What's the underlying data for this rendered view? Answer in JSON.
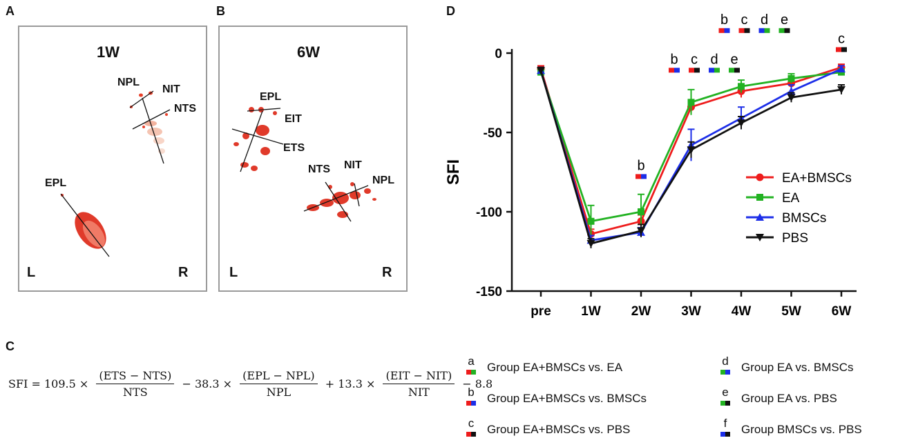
{
  "panels": {
    "A": {
      "letter": "A",
      "title": "1W",
      "labels": {
        "npl": "NPL",
        "nit": "NIT",
        "nts": "NTS",
        "epl": "EPL"
      },
      "left": "L",
      "right": "R"
    },
    "B": {
      "letter": "B",
      "title": "6W",
      "labels": {
        "epl": "EPL",
        "eit": "EIT",
        "ets": "ETS",
        "nts": "NTS",
        "nit": "NIT",
        "npl": "NPL"
      },
      "left": "L",
      "right": "R"
    },
    "C": {
      "letter": "C",
      "formula": {
        "lhs": "SFI = 109.5 × ",
        "f1_num": "(ETS − NTS)",
        "f1_den": "NTS",
        "op2": " − 38.3 × ",
        "f2_num": "(EPL − NPL)",
        "f2_den": "NPL",
        "op3": " + 13.3 × ",
        "f3_num": "(EIT − NIT)",
        "f3_den": "NIT",
        "tail": " − 8.8"
      }
    },
    "D": {
      "letter": "D"
    }
  },
  "colors": {
    "red": "#ee1c1c",
    "green": "#22b222",
    "blue": "#1c2ee8",
    "black": "#111111"
  },
  "chart_data": {
    "type": "line",
    "ylabel": "SFI",
    "xlabel": "",
    "categories": [
      "pre",
      "1W",
      "2W",
      "3W",
      "4W",
      "5W",
      "6W"
    ],
    "ylim": [
      -150,
      0
    ],
    "yticks": [
      0,
      -50,
      -100,
      -150
    ],
    "series": [
      {
        "name": "EA+BMSCs",
        "color": "#ee1c1c",
        "marker": "circle",
        "values": [
          -10,
          -114,
          -106,
          -34,
          -24,
          -19,
          -9
        ],
        "errors": [
          2,
          3,
          4,
          4,
          4,
          3,
          2
        ]
      },
      {
        "name": "EA",
        "color": "#22b222",
        "marker": "square",
        "values": [
          -12,
          -106,
          -100,
          -31,
          -21,
          -16,
          -12
        ],
        "errors": [
          2,
          10,
          11,
          8,
          4,
          3,
          2
        ]
      },
      {
        "name": "BMSCs",
        "color": "#1c2ee8",
        "marker": "triangle-up",
        "values": [
          -11,
          -118,
          -113,
          -58,
          -41,
          -24,
          -10
        ],
        "errors": [
          2,
          3,
          3,
          10,
          7,
          4,
          2
        ]
      },
      {
        "name": "PBS",
        "color": "#111111",
        "marker": "triangle-down",
        "values": [
          -11,
          -120,
          -112,
          -61,
          -44,
          -28,
          -23
        ],
        "errors": [
          2,
          3,
          4,
          5,
          4,
          3,
          3
        ]
      }
    ],
    "annotations": [
      {
        "x": "2W",
        "y": -78,
        "marks": [
          {
            "letter": "b",
            "colors": [
              "#ee1c1c",
              "#1c2ee8"
            ]
          }
        ]
      },
      {
        "x": "3W",
        "y": -11,
        "marks": [
          {
            "letter": "b",
            "colors": [
              "#ee1c1c",
              "#1c2ee8"
            ]
          },
          {
            "letter": "c",
            "colors": [
              "#ee1c1c",
              "#111111"
            ]
          },
          {
            "letter": "d",
            "colors": [
              "#1c2ee8",
              "#22b222"
            ]
          },
          {
            "letter": "e",
            "colors": [
              "#22b222",
              "#111111"
            ]
          }
        ]
      },
      {
        "x": "4W",
        "y": 14,
        "marks": [
          {
            "letter": "b",
            "colors": [
              "#ee1c1c",
              "#1c2ee8"
            ]
          },
          {
            "letter": "c",
            "colors": [
              "#ee1c1c",
              "#111111"
            ]
          },
          {
            "letter": "d",
            "colors": [
              "#1c2ee8",
              "#22b222"
            ]
          },
          {
            "letter": "e",
            "colors": [
              "#22b222",
              "#111111"
            ]
          }
        ]
      },
      {
        "x": "6W",
        "y": 2,
        "marks": [
          {
            "letter": "c",
            "colors": [
              "#ee1c1c",
              "#111111"
            ]
          }
        ]
      }
    ],
    "legend": {
      "placement": "right",
      "entries": [
        "EA+BMSCs",
        "EA",
        "BMSCs",
        "PBS"
      ]
    }
  },
  "comparison_key": [
    {
      "letter": "a",
      "text": "Group EA+BMSCs vs. EA",
      "colors": [
        "#ee1c1c",
        "#22b222"
      ]
    },
    {
      "letter": "b",
      "text": "Group EA+BMSCs vs. BMSCs",
      "colors": [
        "#ee1c1c",
        "#1c2ee8"
      ]
    },
    {
      "letter": "c",
      "text": "Group EA+BMSCs vs. PBS",
      "colors": [
        "#ee1c1c",
        "#111111"
      ]
    },
    {
      "letter": "d",
      "text": "Group EA vs. BMSCs",
      "colors": [
        "#22b222",
        "#1c2ee8"
      ]
    },
    {
      "letter": "e",
      "text": "Group EA vs. PBS",
      "colors": [
        "#22b222",
        "#111111"
      ]
    },
    {
      "letter": "f",
      "text": "Group BMSCs vs. PBS",
      "colors": [
        "#1c2ee8",
        "#111111"
      ]
    }
  ]
}
